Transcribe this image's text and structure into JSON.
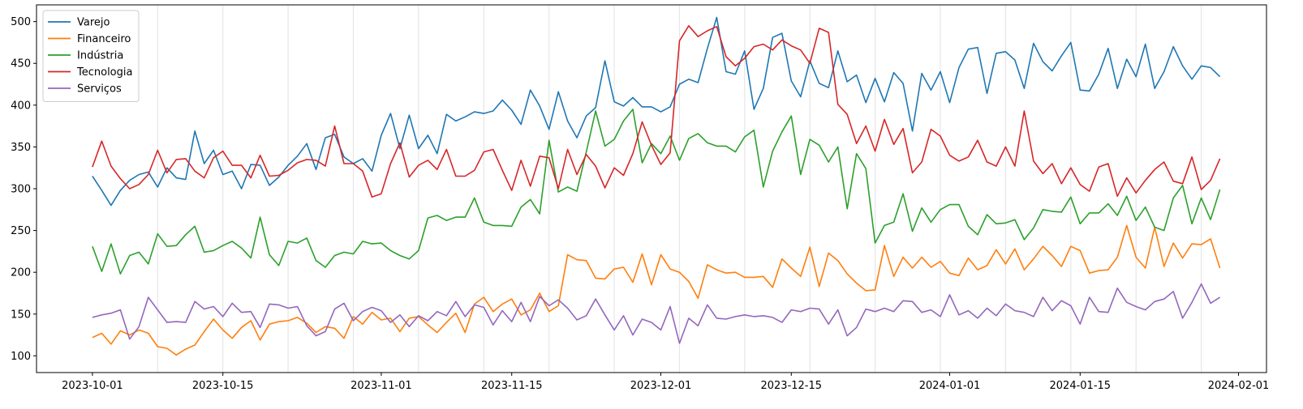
{
  "chart_data": {
    "type": "line",
    "title": "",
    "xlabel": "",
    "ylabel": "",
    "x_start": "2023-10-01",
    "x_step_days": 1,
    "xlim": [
      "2023-09-25",
      "2024-02-04"
    ],
    "ylim": [
      80,
      520
    ],
    "x_ticks": [
      "2023-10-01",
      "2023-10-15",
      "2023-11-01",
      "2023-11-15",
      "2023-12-01",
      "2023-12-15",
      "2024-01-01",
      "2024-01-15",
      "2024-02-01"
    ],
    "y_ticks": [
      100,
      150,
      200,
      250,
      300,
      350,
      400,
      450,
      500
    ],
    "grid": "vertical lines at weekly intervals",
    "legend_position": "upper-left",
    "series": [
      {
        "name": "Varejo",
        "color": "#1f77b4",
        "values": [
          315,
          298,
          280,
          298,
          310,
          317,
          320,
          302,
          325,
          313,
          311,
          369,
          330,
          346,
          317,
          321,
          300,
          329,
          328,
          304,
          314,
          328,
          339,
          354,
          323,
          361,
          365,
          338,
          330,
          336,
          321,
          364,
          390,
          348,
          388,
          348,
          364,
          342,
          389,
          381,
          386,
          392,
          390,
          393,
          406,
          394,
          377,
          418,
          399,
          371,
          416,
          381,
          361,
          387,
          397,
          453,
          404,
          399,
          409,
          398,
          398,
          392,
          398,
          425,
          431,
          427,
          468,
          505,
          440,
          437,
          465,
          395,
          420,
          481,
          486,
          429,
          410,
          453,
          426,
          421,
          465,
          428,
          436,
          403,
          432,
          404,
          439,
          426,
          369,
          438,
          418,
          440,
          403,
          445,
          467,
          469,
          414,
          462,
          464,
          454,
          420,
          474,
          452,
          441,
          459,
          475,
          418,
          417,
          437,
          468,
          420,
          455,
          434,
          473,
          420,
          440,
          470,
          447,
          431,
          447,
          445,
          434
        ]
      },
      {
        "name": "Financeiro",
        "color": "#ff7f0e",
        "values": [
          122,
          127,
          114,
          130,
          125,
          131,
          127,
          111,
          109,
          101,
          108,
          113,
          129,
          144,
          131,
          121,
          134,
          142,
          119,
          138,
          141,
          142,
          146,
          139,
          128,
          135,
          133,
          121,
          147,
          138,
          152,
          143,
          145,
          129,
          145,
          147,
          137,
          128,
          140,
          151,
          128,
          162,
          170,
          153,
          162,
          168,
          149,
          155,
          175,
          153,
          160,
          221,
          215,
          214,
          193,
          192,
          204,
          206,
          188,
          222,
          185,
          221,
          204,
          200,
          189,
          169,
          209,
          203,
          199,
          200,
          194,
          194,
          195,
          182,
          216,
          205,
          195,
          230,
          183,
          223,
          214,
          198,
          187,
          178,
          179,
          232,
          195,
          218,
          205,
          218,
          206,
          213,
          199,
          196,
          217,
          203,
          208,
          227,
          210,
          228,
          203,
          216,
          231,
          220,
          207,
          231,
          226,
          199,
          202,
          203,
          218,
          256,
          218,
          205,
          254,
          207,
          235,
          217,
          234,
          233,
          240,
          205
        ]
      },
      {
        "name": "Indústria",
        "color": "#2ca02c",
        "values": [
          231,
          201,
          234,
          198,
          220,
          224,
          210,
          246,
          231,
          232,
          245,
          255,
          224,
          226,
          232,
          237,
          229,
          217,
          266,
          221,
          208,
          237,
          235,
          241,
          214,
          206,
          220,
          224,
          222,
          237,
          234,
          235,
          226,
          220,
          216,
          226,
          265,
          268,
          262,
          266,
          266,
          289,
          260,
          256,
          256,
          255,
          278,
          287,
          270,
          358,
          296,
          302,
          297,
          344,
          393,
          351,
          359,
          381,
          395,
          331,
          354,
          342,
          363,
          334,
          360,
          366,
          355,
          351,
          351,
          344,
          362,
          370,
          302,
          345,
          368,
          387,
          317,
          359,
          352,
          332,
          350,
          276,
          342,
          324,
          235,
          256,
          260,
          294,
          249,
          277,
          260,
          275,
          281,
          281,
          255,
          245,
          269,
          258,
          259,
          263,
          239,
          253,
          275,
          273,
          272,
          290,
          258,
          271,
          271,
          282,
          268,
          291,
          262,
          278,
          254,
          250,
          289,
          304,
          258,
          289,
          263,
          299
        ]
      },
      {
        "name": "Tecnologia",
        "color": "#d62728",
        "values": [
          326,
          357,
          327,
          312,
          300,
          305,
          317,
          346,
          319,
          335,
          336,
          321,
          313,
          337,
          345,
          328,
          328,
          313,
          340,
          315,
          316,
          322,
          331,
          335,
          334,
          327,
          375,
          330,
          330,
          321,
          290,
          294,
          330,
          355,
          314,
          328,
          334,
          323,
          347,
          315,
          315,
          322,
          344,
          347,
          322,
          298,
          334,
          303,
          339,
          337,
          300,
          347,
          317,
          341,
          327,
          301,
          325,
          316,
          342,
          380,
          352,
          329,
          343,
          477,
          495,
          482,
          489,
          494,
          458,
          447,
          456,
          470,
          473,
          466,
          478,
          471,
          466,
          450,
          492,
          487,
          401,
          389,
          354,
          375,
          345,
          383,
          353,
          372,
          319,
          332,
          371,
          363,
          340,
          333,
          338,
          358,
          332,
          327,
          350,
          327,
          393,
          333,
          318,
          330,
          306,
          325,
          305,
          297,
          326,
          330,
          291,
          313,
          295,
          310,
          323,
          332,
          309,
          306,
          338,
          299,
          310,
          336
        ]
      },
      {
        "name": "Serviços",
        "color": "#9467bd",
        "values": [
          146,
          149,
          151,
          155,
          120,
          135,
          170,
          155,
          140,
          141,
          140,
          165,
          156,
          159,
          147,
          163,
          152,
          153,
          134,
          162,
          161,
          157,
          159,
          136,
          124,
          129,
          156,
          163,
          142,
          153,
          158,
          154,
          140,
          149,
          135,
          148,
          142,
          153,
          148,
          165,
          147,
          161,
          158,
          137,
          154,
          141,
          164,
          141,
          171,
          160,
          167,
          157,
          143,
          148,
          168,
          149,
          131,
          148,
          125,
          144,
          140,
          131,
          159,
          115,
          145,
          136,
          161,
          145,
          144,
          147,
          149,
          147,
          148,
          146,
          140,
          155,
          153,
          157,
          156,
          138,
          155,
          124,
          134,
          156,
          153,
          157,
          153,
          166,
          165,
          152,
          155,
          147,
          173,
          149,
          154,
          145,
          157,
          148,
          162,
          154,
          152,
          147,
          170,
          154,
          166,
          160,
          138,
          170,
          153,
          152,
          181,
          164,
          159,
          155,
          165,
          168,
          177,
          145,
          164,
          186,
          163,
          170
        ]
      }
    ]
  }
}
